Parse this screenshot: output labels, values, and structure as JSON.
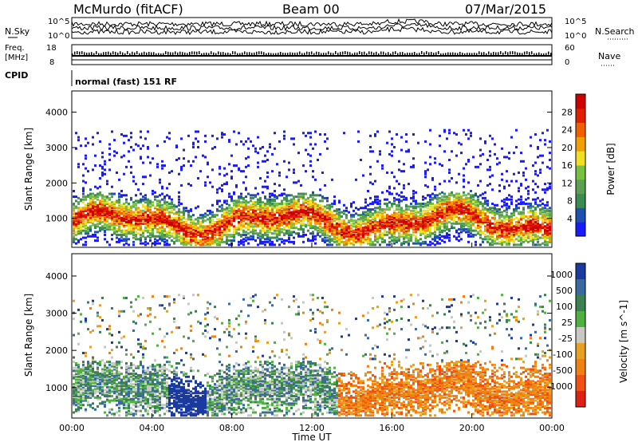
{
  "header": {
    "station": "McMurdo (fitACF)",
    "beam": "Beam 00",
    "date": "07/Mar/2015"
  },
  "noise_panel": {
    "left_label": "N.Sky",
    "right_label": "N.Search",
    "ticks": [
      "10^5",
      "10^0"
    ],
    "right_ticks": [
      "10^5",
      "10^0"
    ]
  },
  "freq_panel": {
    "left_label_1": "Freq.",
    "left_label_2": "[MHz]",
    "right_label": "Nave",
    "left_ticks": [
      "18",
      "8"
    ],
    "right_ticks": [
      "60",
      "0"
    ]
  },
  "cpid_panel": {
    "label": "CPID",
    "text": "normal (fast) 151 RF"
  },
  "colors": {
    "power_scale": [
      "#1a1aff",
      "#1f4fb0",
      "#3a8c50",
      "#5aa050",
      "#78c040",
      "#f0e020",
      "#f0a000",
      "#f06000",
      "#e02000",
      "#d00000"
    ],
    "velocity_scale": [
      "#1a3aa0",
      "#3a6aa0",
      "#3a8050",
      "#50b040",
      "#c8c8c0",
      "#e8a020",
      "#f08010",
      "#f05010",
      "#e02010"
    ]
  },
  "chart_data": [
    {
      "type": "heatmap",
      "title": "Power",
      "ylabel": "Slant Range [km]",
      "xlabel": "",
      "x_ticks": [
        "00:00",
        "04:00",
        "08:00",
        "12:00",
        "16:00",
        "20:00",
        "00:00"
      ],
      "y_ticks": [
        "1000",
        "2000",
        "3000",
        "4000"
      ],
      "ylim": [
        180,
        4600
      ],
      "colorbar_label": "Power [dB]",
      "colorbar_ticks": [
        "4",
        "8",
        "12",
        "16",
        "20",
        "24",
        "28"
      ]
    },
    {
      "type": "heatmap",
      "title": "Velocity",
      "ylabel": "Slant Range [km]",
      "xlabel": "Time UT",
      "x_ticks": [
        "00:00",
        "04:00",
        "08:00",
        "12:00",
        "16:00",
        "20:00",
        "00:00"
      ],
      "y_ticks": [
        "1000",
        "2000",
        "3000",
        "4000"
      ],
      "ylim": [
        180,
        4600
      ],
      "colorbar_label": "Velocity [m s^-1]",
      "colorbar_ticks": [
        "1000",
        "500",
        "100",
        "25",
        "-25",
        "-100",
        "-500",
        "-1000"
      ]
    }
  ]
}
